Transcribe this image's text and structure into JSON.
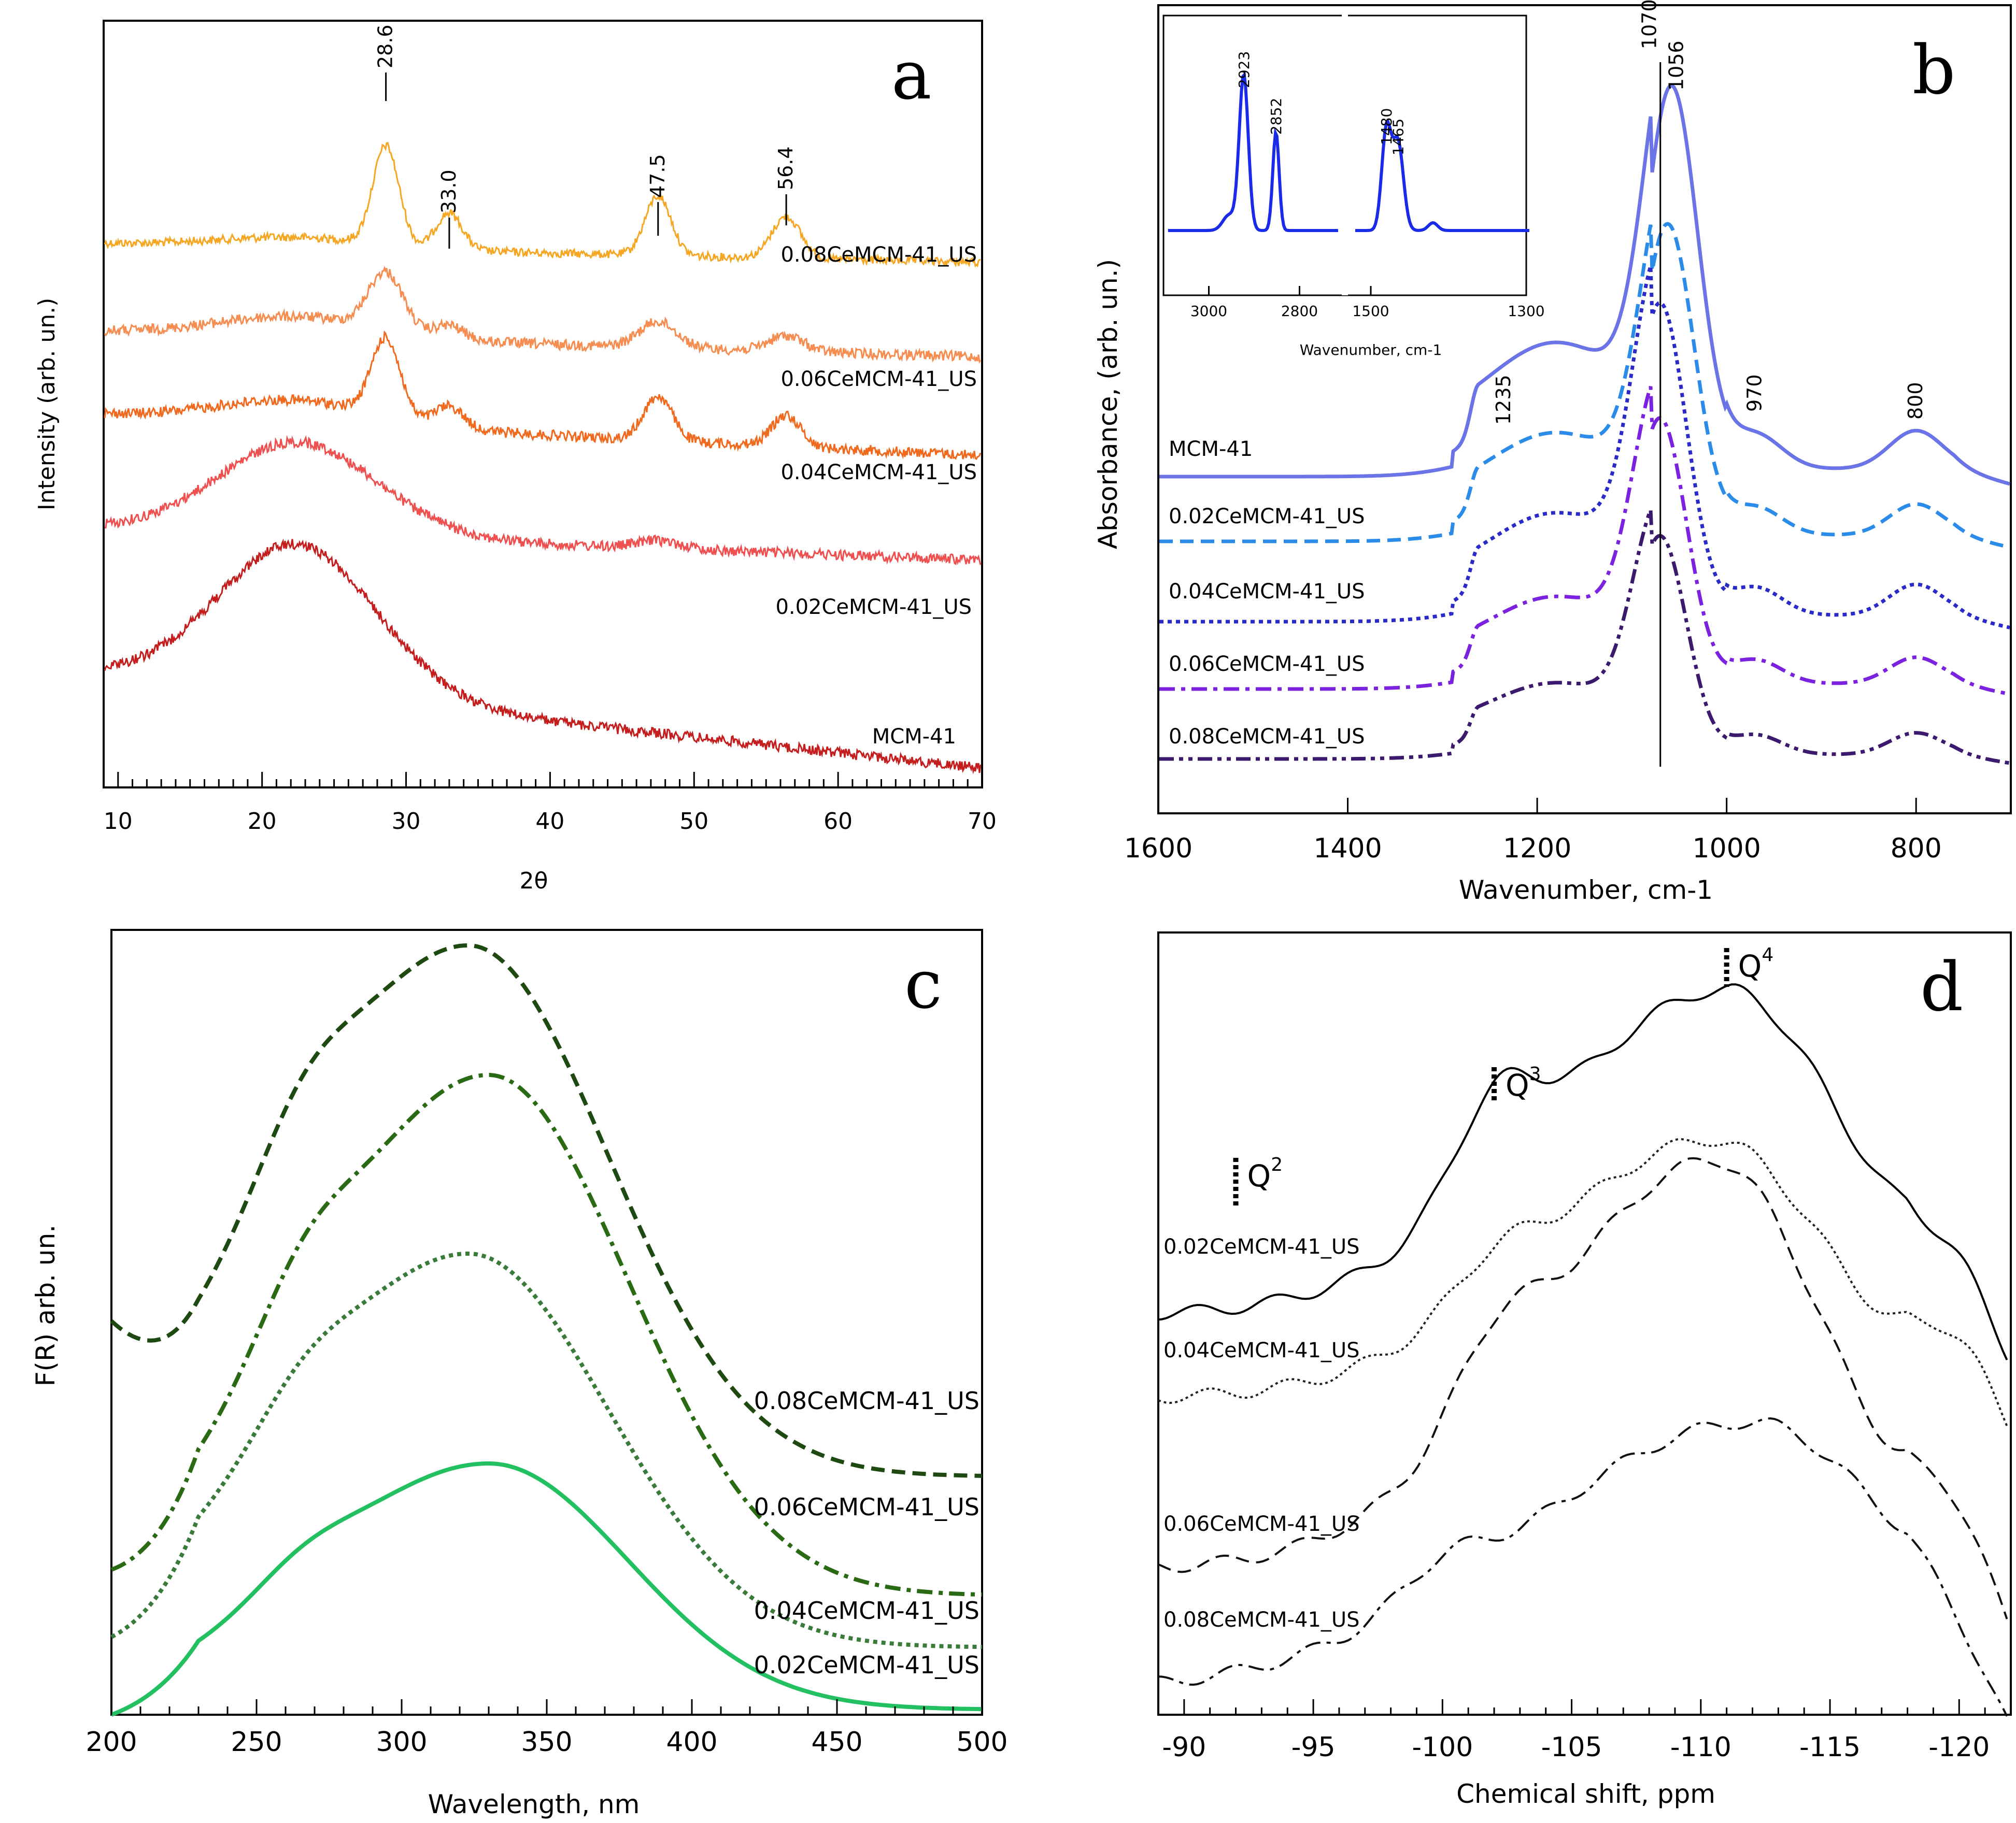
{
  "figure": {
    "panels": [
      "a",
      "b",
      "c",
      "d"
    ]
  },
  "chart_data": [
    {
      "panel": "a",
      "type": "line",
      "title": "",
      "xlabel": "2θ",
      "ylabel": "Intensity (arb. un.)",
      "xlim": [
        9,
        70
      ],
      "xticks": [
        10,
        20,
        30,
        40,
        50,
        60,
        70
      ],
      "peak_labels": [
        "28.6",
        "33.0",
        "47.5",
        "56.4"
      ],
      "series": [
        {
          "name": "0.08CeMCM-41_US",
          "color": "#f5a623"
        },
        {
          "name": "0.06CeMCM-41_US",
          "color": "#f58c50"
        },
        {
          "name": "0.04CeMCM-41_US",
          "color": "#ef6a1f"
        },
        {
          "name": "0.02CeMCM-41_US",
          "color": "#ee5050"
        },
        {
          "name": "MCM-41",
          "color": "#c41d1d"
        }
      ]
    },
    {
      "panel": "b",
      "type": "line",
      "xlabel": "Wavenumber, cm-1",
      "ylabel": "Absorbance, (arb. un.)",
      "xlim": [
        1600,
        700
      ],
      "xticks": [
        1600,
        1400,
        1200,
        1000,
        800
      ],
      "peak_labels": [
        "1235",
        "1070",
        "1056",
        "970",
        "800"
      ],
      "series": [
        {
          "name": "MCM-41",
          "color": "#6b74e6",
          "style": "solid"
        },
        {
          "name": "0.02CeMCM-41_US",
          "color": "#2a8ce8",
          "style": "dashed"
        },
        {
          "name": "0.04CeMCM-41_US",
          "color": "#2a2ac8",
          "style": "dotted"
        },
        {
          "name": "0.06CeMCM-41_US",
          "color": "#7a22e0",
          "style": "dashdot"
        },
        {
          "name": "0.08CeMCM-41_US",
          "color": "#3b1a6e",
          "style": "dashdotdot"
        }
      ],
      "inset": {
        "xlabel": "Wavenumber, cm-1",
        "xticks": [
          "3000",
          "2800",
          "1500",
          "1300"
        ],
        "peak_labels": [
          "2923",
          "2852",
          "1480",
          "1465"
        ],
        "color": "#1a2be8"
      }
    },
    {
      "panel": "c",
      "type": "line",
      "xlabel": "Wavelength, nm",
      "ylabel": "F(R) arb. un.",
      "xlim": [
        200,
        500
      ],
      "xticks": [
        200,
        250,
        300,
        350,
        400,
        450,
        500
      ],
      "series": [
        {
          "name": "0.08CeMCM-41_US",
          "color": "#1e4a12",
          "style": "dashed",
          "peak_x": 323
        },
        {
          "name": "0.06CeMCM-41_US",
          "color": "#2a6a14",
          "style": "dashdot",
          "peak_x": 330
        },
        {
          "name": "0.04CeMCM-41_US",
          "color": "#3a7a3a",
          "style": "dotted",
          "peak_x": 323
        },
        {
          "name": "0.02CeMCM-41_US",
          "color": "#22c060",
          "style": "solid",
          "peak_x": 330
        }
      ]
    },
    {
      "panel": "d",
      "type": "line",
      "xlabel": "Chemical shift, ppm",
      "ylabel": "",
      "xlim": [
        -89,
        -122
      ],
      "xticks": [
        -90,
        -95,
        -100,
        -105,
        -110,
        -115,
        -120
      ],
      "q_labels": [
        {
          "base": "Q",
          "sup": "2",
          "x": -92
        },
        {
          "base": "Q",
          "sup": "3",
          "x": -102
        },
        {
          "base": "Q",
          "sup": "4",
          "x": -111
        }
      ],
      "series": [
        {
          "name": "0.02CeMCM-41_US",
          "color": "#000000",
          "style": "solid"
        },
        {
          "name": "0.04CeMCM-41_US",
          "color": "#222222",
          "style": "dotted"
        },
        {
          "name": "0.06CeMCM-41_US",
          "color": "#111111",
          "style": "dashed"
        },
        {
          "name": "0.08CeMCM-41_US",
          "color": "#111111",
          "style": "dashdot"
        }
      ]
    }
  ]
}
